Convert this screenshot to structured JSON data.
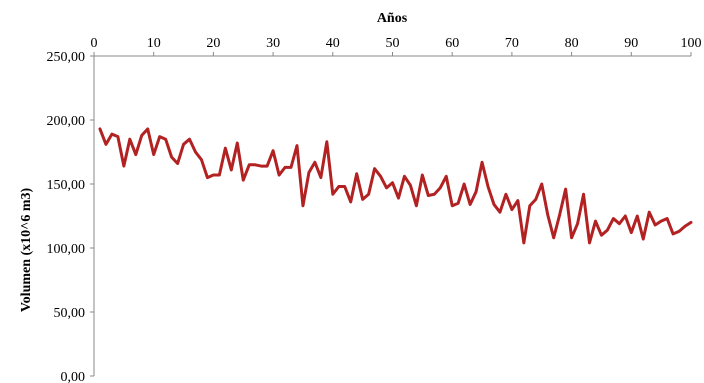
{
  "chart_data": {
    "type": "line",
    "xlabel": "Años",
    "ylabel": "Volumen (x10^6 m3)",
    "x_axis_position": "top",
    "xlim": [
      0,
      100
    ],
    "ylim": [
      0,
      250
    ],
    "x_ticks": [
      "0",
      "10",
      "20",
      "30",
      "40",
      "50",
      "60",
      "70",
      "80",
      "90",
      "100"
    ],
    "y_ticks": [
      "0,00",
      "50,00",
      "100,00",
      "150,00",
      "200,00",
      "250,00"
    ],
    "grid": false,
    "legend": "none",
    "series": [
      {
        "color": "#b22222",
        "x": [
          1,
          2,
          3,
          4,
          5,
          6,
          7,
          8,
          9,
          10,
          11,
          12,
          13,
          14,
          15,
          16,
          17,
          18,
          19,
          20,
          21,
          22,
          23,
          24,
          25,
          26,
          27,
          28,
          29,
          30,
          31,
          32,
          33,
          34,
          35,
          36,
          37,
          38,
          39,
          40,
          41,
          42,
          43,
          44,
          45,
          46,
          47,
          48,
          49,
          50,
          51,
          52,
          53,
          54,
          55,
          56,
          57,
          58,
          59,
          60,
          61,
          62,
          63,
          64,
          65,
          66,
          67,
          68,
          69,
          70,
          71,
          72,
          73,
          74,
          75,
          76,
          77,
          78,
          79,
          80,
          81,
          82,
          83,
          84,
          85,
          86,
          87,
          88,
          89,
          90,
          91,
          92,
          93,
          94,
          95,
          96,
          97,
          98,
          99,
          100
        ],
        "values": [
          193,
          181,
          189,
          187,
          164,
          185,
          173,
          188,
          193,
          173,
          187,
          185,
          171,
          166,
          181,
          185,
          175,
          169,
          155,
          157,
          157,
          178,
          161,
          182,
          153,
          165,
          165,
          164,
          164,
          176,
          157,
          163,
          163,
          180,
          133,
          159,
          167,
          155,
          183,
          142,
          148,
          148,
          136,
          158,
          138,
          142,
          162,
          156,
          147,
          151,
          139,
          156,
          149,
          133,
          157,
          141,
          142,
          147,
          156,
          133,
          135,
          150,
          134,
          144,
          167,
          148,
          134,
          128,
          142,
          130,
          137,
          104,
          133,
          138,
          150,
          126,
          108,
          126,
          146,
          108,
          119,
          142,
          104,
          121,
          110,
          114,
          123,
          119,
          125,
          112,
          125,
          107,
          128,
          118,
          121,
          123,
          111,
          113,
          117,
          120
        ]
      }
    ]
  }
}
